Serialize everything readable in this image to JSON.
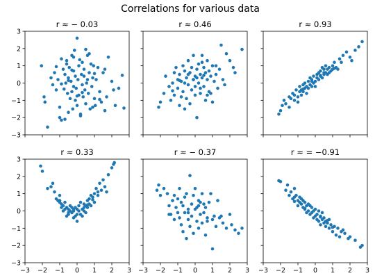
{
  "figure": {
    "title": "Correlations for various data"
  },
  "colors": {
    "marker": "#1f77b4"
  },
  "chart_data": [
    {
      "type": "scatter",
      "title": "r ≈ − 0.03",
      "xlim": [
        -3,
        3
      ],
      "ylim": [
        -3,
        3
      ],
      "xticks": [
        -3,
        -2,
        -1,
        0,
        1,
        2,
        3
      ],
      "yticks": [
        -3,
        -2,
        -1,
        0,
        1,
        2,
        3
      ],
      "show_x_tick_labels": false,
      "show_y_tick_labels": true,
      "grid": false,
      "x": [
        -2.05,
        -1.9,
        -1.85,
        -1.7,
        -1.5,
        -1.4,
        -1.3,
        -1.2,
        -1.1,
        -1.0,
        -1.0,
        -0.9,
        -0.9,
        -0.8,
        -0.75,
        -0.7,
        -0.7,
        -0.65,
        -0.6,
        -0.55,
        -0.5,
        -0.5,
        -0.45,
        -0.4,
        -0.35,
        -0.3,
        -0.3,
        -0.25,
        -0.2,
        -0.2,
        -0.15,
        -0.1,
        -0.1,
        -0.05,
        0.0,
        0.0,
        0.05,
        0.1,
        0.1,
        0.15,
        0.2,
        0.25,
        0.3,
        0.3,
        0.35,
        0.4,
        0.45,
        0.5,
        0.5,
        0.55,
        0.6,
        0.65,
        0.7,
        0.75,
        0.8,
        0.85,
        0.9,
        0.95,
        1.0,
        1.05,
        1.1,
        1.2,
        1.3,
        1.4,
        1.5,
        1.6,
        1.7,
        1.8,
        2.0,
        2.1,
        2.2,
        2.4,
        2.6,
        2.7,
        -0.2,
        0.4,
        -0.6,
        0.9,
        -1.2,
        0.0,
        0.6,
        -0.3,
        1.0,
        -0.9,
        0.3,
        0.7,
        1.6,
        -0.5,
        0.2,
        1.3
      ],
      "y": [
        1.0,
        -0.8,
        -1.1,
        -2.55,
        0.3,
        -0.1,
        0.6,
        -0.4,
        0.2,
        -1.4,
        -2.0,
        1.4,
        -2.15,
        0.8,
        -0.35,
        0.5,
        -2.1,
        0.0,
        1.1,
        -0.6,
        0.3,
        -1.7,
        0.9,
        -0.9,
        0.1,
        1.6,
        -0.5,
        -1.5,
        0.7,
        -0.2,
        1.9,
        -1.0,
        0.4,
        -0.3,
        2.6,
        -1.3,
        0.2,
        1.0,
        -0.7,
        1.35,
        -1.9,
        0.5,
        -0.1,
        1.2,
        -0.8,
        0.8,
        -0.4,
        1.95,
        -1.2,
        0.0,
        1.6,
        -0.6,
        0.6,
        -1.5,
        1.1,
        -0.2,
        0.3,
        1.0,
        -0.9,
        -1.3,
        0.2,
        0.9,
        -0.5,
        -1.1,
        0.6,
        -1.6,
        -0.8,
        1.5,
        0.1,
        -0.4,
        -1.3,
        -0.3,
        0.45,
        -1.45,
        1.5,
        0.4,
        1.3,
        -1.4,
        0.95,
        -0.75,
        0.2,
        0.75,
        0.55,
        -0.05,
        -0.55,
        1.7,
        0.8,
        0.15,
        -1.8,
        -0.95
      ]
    },
    {
      "type": "scatter",
      "title": "r ≈ 0.46",
      "xlim": [
        -3,
        3
      ],
      "ylim": [
        -3,
        3
      ],
      "xticks": [
        -3,
        -2,
        -1,
        0,
        1,
        2,
        3
      ],
      "yticks": [
        -3,
        -2,
        -1,
        0,
        1,
        2,
        3
      ],
      "show_x_tick_labels": false,
      "show_y_tick_labels": false,
      "grid": false,
      "x": [
        -2.1,
        -2.0,
        -1.8,
        -1.7,
        -1.5,
        -1.4,
        -1.3,
        -1.2,
        -1.2,
        -1.1,
        -1.0,
        -1.0,
        -0.9,
        -0.9,
        -0.8,
        -0.8,
        -0.7,
        -0.7,
        -0.6,
        -0.6,
        -0.5,
        -0.5,
        -0.4,
        -0.4,
        -0.3,
        -0.3,
        -0.2,
        -0.2,
        -0.1,
        -0.1,
        0.0,
        0.0,
        0.1,
        0.1,
        0.2,
        0.2,
        0.3,
        0.3,
        0.4,
        0.4,
        0.5,
        0.5,
        0.6,
        0.6,
        0.7,
        0.7,
        0.8,
        0.8,
        0.9,
        1.0,
        1.0,
        1.1,
        1.2,
        1.3,
        1.4,
        1.5,
        1.6,
        1.7,
        1.8,
        2.0,
        2.2,
        2.3,
        2.7,
        0.1,
        -0.1,
        0.3,
        0.5,
        -0.6,
        -1.3,
        0.0,
        0.9,
        0.4,
        -0.4,
        1.2,
        0.7,
        -0.9
      ],
      "y": [
        -1.4,
        -1.1,
        -0.6,
        0.4,
        -0.2,
        -1.0,
        0.0,
        0.6,
        -0.7,
        0.9,
        -0.3,
        0.2,
        -1.3,
        0.5,
        -0.8,
        0.1,
        1.0,
        -0.5,
        0.7,
        -1.5,
        0.3,
        -0.9,
        1.3,
        -0.1,
        0.6,
        -1.2,
        0.9,
        -0.4,
        1.6,
        0.2,
        -0.7,
        0.4,
        0.8,
        -2.0,
        1.1,
        0.0,
        0.5,
        -0.6,
        1.6,
        0.3,
        -0.2,
        0.9,
        0.6,
        -1.0,
        0.2,
        1.3,
        -0.5,
        0.7,
        0.4,
        -1.1,
        1.0,
        0.1,
        0.5,
        -0.3,
        0.8,
        2.2,
        0.2,
        -0.1,
        1.7,
        1.3,
        0.9,
        0.6,
        1.95,
        0.3,
        0.2,
        -0.3,
        0.45,
        0.0,
        -0.45,
        -0.2,
        -0.6,
        1.2,
        0.5,
        1.0,
        -0.7,
        0.15
      ]
    },
    {
      "type": "scatter",
      "title": "r ≈ 0.93",
      "xlim": [
        -3,
        3
      ],
      "ylim": [
        -3,
        3
      ],
      "xticks": [
        -3,
        -2,
        -1,
        0,
        1,
        2,
        3
      ],
      "yticks": [
        -3,
        -2,
        -1,
        0,
        1,
        2,
        3
      ],
      "show_x_tick_labels": false,
      "show_y_tick_labels": false,
      "grid": false,
      "x": [
        -2.1,
        -2.0,
        -1.9,
        -1.8,
        -1.7,
        -1.5,
        -1.4,
        -1.3,
        -1.2,
        -1.2,
        -1.1,
        -1.0,
        -1.0,
        -0.9,
        -0.9,
        -0.8,
        -0.8,
        -0.7,
        -0.7,
        -0.6,
        -0.6,
        -0.5,
        -0.5,
        -0.4,
        -0.4,
        -0.3,
        -0.3,
        -0.2,
        -0.2,
        -0.1,
        -0.1,
        0.0,
        0.0,
        0.1,
        0.1,
        0.2,
        0.2,
        0.3,
        0.3,
        0.4,
        0.4,
        0.5,
        0.5,
        0.6,
        0.6,
        0.7,
        0.7,
        0.8,
        0.8,
        0.9,
        1.0,
        1.0,
        1.1,
        1.2,
        1.3,
        1.4,
        1.5,
        1.6,
        1.8,
        2.0,
        2.1,
        2.3,
        2.5,
        2.7,
        -1.5,
        -0.2,
        0.5,
        1.1,
        -0.7,
        0.3
      ],
      "y": [
        -1.8,
        -1.6,
        -1.3,
        -1.0,
        -1.2,
        -1.4,
        -0.9,
        -0.6,
        -1.0,
        -0.7,
        -0.4,
        -1.1,
        -0.8,
        -0.5,
        -0.2,
        -0.7,
        -0.4,
        -0.1,
        -0.5,
        -0.3,
        0.0,
        -0.6,
        -0.2,
        -0.3,
        0.1,
        -0.1,
        0.3,
        -0.2,
        0.2,
        0.0,
        0.4,
        0.1,
        -0.2,
        0.3,
        0.5,
        0.2,
        0.6,
        0.4,
        0.7,
        0.3,
        0.9,
        0.5,
        0.8,
        0.6,
        1.0,
        0.5,
        0.8,
        0.9,
        0.6,
        0.7,
        1.0,
        0.8,
        1.2,
        0.9,
        0.8,
        1.4,
        1.2,
        1.6,
        1.8,
        1.5,
        1.3,
        1.9,
        2.1,
        2.4,
        -0.8,
        0.1,
        0.6,
        0.85,
        -0.35,
        0.45
      ]
    },
    {
      "type": "scatter",
      "title": "r ≈ 0.33",
      "xlim": [
        -3,
        3
      ],
      "ylim": [
        -3,
        3
      ],
      "xticks": [
        -3,
        -2,
        -1,
        0,
        1,
        2,
        3
      ],
      "yticks": [
        -3,
        -2,
        -1,
        0,
        1,
        2,
        3
      ],
      "xticklabels": [
        "−3",
        "−2",
        "−1",
        "0",
        "1",
        "2",
        "3"
      ],
      "yticklabels": [
        "−3",
        "−2",
        "−1",
        "0",
        "1",
        "2",
        "3"
      ],
      "show_x_tick_labels": true,
      "show_y_tick_labels": true,
      "grid": false,
      "x": [
        -2.1,
        -2.0,
        -1.7,
        -1.5,
        -1.4,
        -1.3,
        -1.2,
        -1.1,
        -1.0,
        -1.0,
        -0.9,
        -0.9,
        -0.8,
        -0.8,
        -0.7,
        -0.7,
        -0.6,
        -0.6,
        -0.5,
        -0.5,
        -0.4,
        -0.4,
        -0.3,
        -0.3,
        -0.2,
        -0.2,
        -0.1,
        -0.1,
        0.0,
        0.0,
        0.1,
        0.1,
        0.2,
        0.2,
        0.3,
        0.3,
        0.4,
        0.4,
        0.5,
        0.5,
        0.6,
        0.6,
        0.7,
        0.7,
        0.8,
        0.8,
        0.9,
        1.0,
        1.0,
        1.1,
        1.2,
        1.3,
        1.4,
        1.5,
        1.6,
        1.7,
        1.8,
        2.0,
        2.1,
        2.15,
        0.0,
        -0.5,
        0.4,
        -1.0,
        1.2,
        0.6,
        -0.2,
        0.9
      ],
      "y": [
        2.6,
        2.3,
        1.3,
        1.4,
        1.6,
        1.1,
        0.7,
        0.6,
        0.9,
        0.5,
        0.4,
        0.2,
        0.0,
        0.3,
        0.5,
        0.1,
        0.2,
        -0.3,
        0.1,
        -0.2,
        0.3,
        0.0,
        -0.1,
        0.2,
        0.0,
        -0.4,
        0.2,
        -0.3,
        -0.6,
        0.1,
        0.0,
        0.3,
        -0.2,
        0.5,
        0.1,
        -0.3,
        0.2,
        0.4,
        -0.1,
        0.3,
        0.6,
        0.2,
        0.4,
        0.7,
        0.9,
        0.3,
        0.8,
        0.5,
        1.0,
        1.3,
        0.9,
        1.6,
        1.2,
        1.8,
        1.4,
        1.1,
        2.1,
        2.5,
        2.7,
        2.8,
        -0.2,
        -0.1,
        0.0,
        0.6,
        1.1,
        0.35,
        0.1,
        0.65
      ]
    },
    {
      "type": "scatter",
      "title": "r ≈ − 0.37",
      "xlim": [
        -3,
        3
      ],
      "ylim": [
        -3,
        3
      ],
      "xticks": [
        -3,
        -2,
        -1,
        0,
        1,
        2,
        3
      ],
      "yticks": [
        -3,
        -2,
        -1,
        0,
        1,
        2,
        3
      ],
      "xticklabels": [
        "−3",
        "−2",
        "−1",
        "0",
        "1",
        "2",
        "3"
      ],
      "show_x_tick_labels": true,
      "show_y_tick_labels": false,
      "grid": false,
      "x": [
        -2.2,
        -2.1,
        -2.0,
        -1.8,
        -1.6,
        -1.5,
        -1.4,
        -1.3,
        -1.2,
        -1.2,
        -1.1,
        -1.0,
        -1.0,
        -0.9,
        -0.9,
        -0.8,
        -0.8,
        -0.7,
        -0.7,
        -0.6,
        -0.6,
        -0.5,
        -0.5,
        -0.4,
        -0.4,
        -0.3,
        -0.3,
        -0.2,
        -0.2,
        -0.1,
        -0.1,
        0.0,
        0.0,
        0.1,
        0.1,
        0.2,
        0.2,
        0.3,
        0.3,
        0.4,
        0.4,
        0.5,
        0.5,
        0.6,
        0.6,
        0.7,
        0.8,
        0.9,
        1.0,
        1.1,
        1.2,
        1.3,
        1.4,
        1.6,
        1.8,
        2.0,
        2.1,
        2.3,
        2.5,
        2.7,
        -0.4,
        0.2,
        1.0,
        -1.5,
        0.7,
        1.5
      ],
      "y": [
        1.2,
        1.5,
        0.9,
        1.3,
        1.0,
        0.3,
        -0.2,
        0.6,
        0.9,
        -0.5,
        0.2,
        -0.1,
        0.7,
        1.3,
        -0.4,
        0.5,
        -0.8,
        0.3,
        -1.2,
        0.8,
        -0.1,
        1.0,
        -1.6,
        0.1,
        -0.5,
        2.05,
        -0.9,
        0.4,
        -0.3,
        0.9,
        -1.3,
        0.1,
        1.3,
        -0.6,
        0.2,
        -1.0,
        0.6,
        -0.2,
        0.5,
        1.0,
        -0.7,
        -0.1,
        0.4,
        -1.4,
        0.2,
        -0.4,
        0.5,
        1.0,
        -2.2,
        -0.3,
        -0.9,
        0.6,
        -0.4,
        -0.7,
        -1.0,
        -0.2,
        -0.8,
        -1.1,
        -1.3,
        -1.0,
        -0.1,
        0.3,
        -0.5,
        -0.2,
        -0.6,
        -0.3
      ]
    },
    {
      "type": "scatter",
      "title": "r ≈ = −0.91",
      "xlim": [
        -3,
        3
      ],
      "ylim": [
        -3,
        3
      ],
      "xticks": [
        -3,
        -2,
        -1,
        0,
        1,
        2,
        3
      ],
      "yticks": [
        -3,
        -2,
        -1,
        0,
        1,
        2,
        3
      ],
      "xticklabels": [
        "−3",
        "−2",
        "−1",
        "0",
        "1",
        "2",
        "3"
      ],
      "show_x_tick_labels": true,
      "show_y_tick_labels": false,
      "grid": false,
      "x": [
        -2.1,
        -2.0,
        -1.7,
        -1.6,
        -1.5,
        -1.4,
        -1.3,
        -1.2,
        -1.2,
        -1.1,
        -1.0,
        -1.0,
        -0.9,
        -0.9,
        -0.8,
        -0.8,
        -0.7,
        -0.7,
        -0.6,
        -0.6,
        -0.5,
        -0.5,
        -0.4,
        -0.4,
        -0.3,
        -0.3,
        -0.2,
        -0.2,
        -0.1,
        -0.1,
        0.0,
        0.0,
        0.1,
        0.1,
        0.2,
        0.2,
        0.3,
        0.3,
        0.4,
        0.4,
        0.5,
        0.5,
        0.6,
        0.6,
        0.7,
        0.8,
        0.8,
        0.9,
        1.0,
        1.1,
        1.2,
        1.3,
        1.4,
        1.5,
        1.7,
        1.9,
        2.0,
        2.3,
        2.6,
        2.7,
        -0.6,
        0.3,
        1.0,
        -1.2,
        0.7,
        1.6
      ],
      "y": [
        1.75,
        1.7,
        1.2,
        1.5,
        0.9,
        1.1,
        0.7,
        1.3,
        0.8,
        0.9,
        0.6,
        0.3,
        0.8,
        0.5,
        0.4,
        0.7,
        0.2,
        0.6,
        0.1,
        0.5,
        -0.1,
        0.3,
        0.4,
        0.0,
        -0.2,
        0.3,
        0.2,
        -0.1,
        0.0,
        -0.4,
        0.1,
        -0.3,
        -0.2,
        -0.5,
        0.0,
        -0.6,
        -0.3,
        -0.8,
        -0.1,
        -0.5,
        -0.7,
        -0.4,
        -0.9,
        -0.6,
        -0.7,
        -0.5,
        -1.0,
        -0.8,
        -1.2,
        -0.9,
        -1.4,
        -1.0,
        -1.5,
        -1.2,
        -1.3,
        -1.6,
        -1.5,
        -1.7,
        -2.1,
        -2.0,
        0.15,
        -0.35,
        -0.95,
        0.55,
        -0.55,
        -1.1
      ]
    }
  ]
}
